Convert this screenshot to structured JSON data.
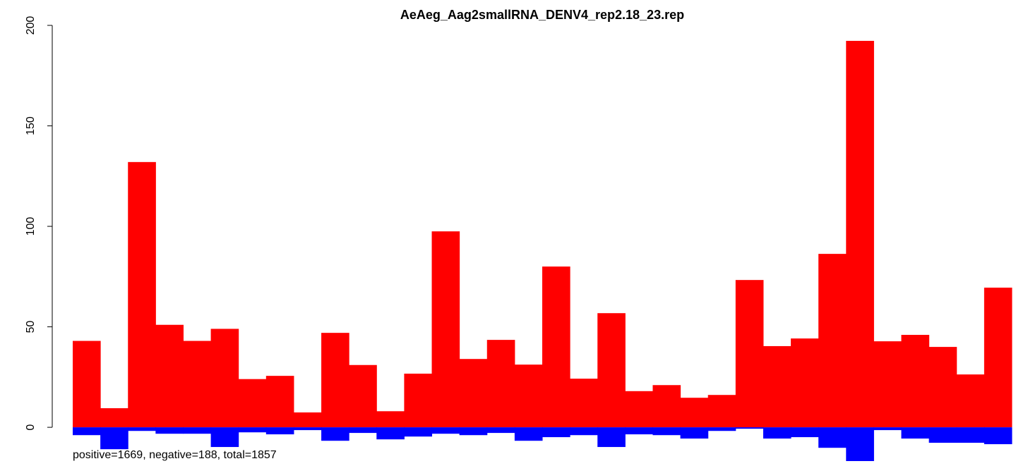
{
  "chart_data": {
    "type": "bar",
    "title": "AeAeg_Aag2smallRNA_DENV4_rep2.18_23.rep",
    "annotation": "positive=1669, negative=188, total=1857",
    "series": [
      {
        "color": "#ff0000",
        "values": [
          43,
          9.5,
          132,
          51,
          43,
          49,
          24,
          25.6,
          7.4,
          47,
          31,
          8,
          26.7,
          97.5,
          34,
          43.5,
          31.2,
          80,
          24.2,
          56.8,
          18,
          21,
          14.7,
          16.1,
          73.3,
          40.4,
          44.2,
          86.3,
          192.3,
          42.8,
          46,
          40,
          26.3,
          69.5
        ]
      },
      {
        "color": "#0000ff",
        "values": [
          -3.9,
          -10.9,
          -1.8,
          -3.2,
          -3.2,
          -9.8,
          -2.5,
          -3.5,
          -1.4,
          -6.7,
          -2.8,
          -6,
          -4.6,
          -3.2,
          -3.9,
          -2.8,
          -6.7,
          -4.9,
          -3.9,
          -9.8,
          -3.5,
          -3.9,
          -5.6,
          -1.8,
          -0.7,
          -5.6,
          -4.9,
          -10.2,
          -16.8,
          -1.4,
          -5.6,
          -7.7,
          -7.7,
          -8.4
        ]
      }
    ],
    "ylim": [
      -17.5,
      200
    ],
    "yticks": [
      0,
      50,
      100,
      150,
      200
    ],
    "grid": false
  }
}
